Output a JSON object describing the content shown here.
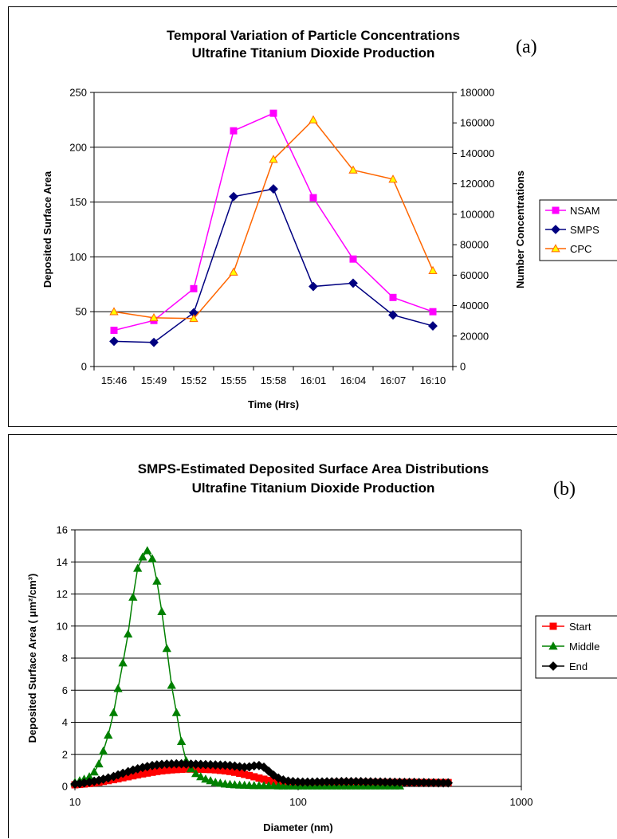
{
  "chart_data": [
    {
      "panel_label": "(a)",
      "type": "line",
      "title": "Temporal Variation of Particle Concentrations",
      "subtitle": "Ultrafine Titanium Dioxide Production",
      "xlabel": "Time (Hrs)",
      "ylabel": "Deposited Surface Area",
      "y2label": "Number Concentrations",
      "categories": [
        "15:46",
        "15:49",
        "15:52",
        "15:55",
        "15:58",
        "16:01",
        "16:04",
        "16:07",
        "16:10"
      ],
      "ylim": [
        0,
        250
      ],
      "y2lim": [
        0,
        180000
      ],
      "yticks": [
        "0",
        "50",
        "100",
        "150",
        "200",
        "250"
      ],
      "y2ticks": [
        "0",
        "20000",
        "40000",
        "60000",
        "80000",
        "100000",
        "120000",
        "140000",
        "160000",
        "180000"
      ],
      "grid": true,
      "legend_position": "right",
      "series": [
        {
          "name": "NSAM",
          "axis": "left",
          "color": "#ff00ff",
          "marker": "square",
          "values": [
            33,
            42,
            71,
            215,
            231,
            154,
            98,
            63,
            50
          ]
        },
        {
          "name": "SMPS",
          "axis": "left",
          "color": "#000080",
          "marker": "diamond",
          "values": [
            23,
            22,
            49,
            155,
            162,
            73,
            76,
            47,
            37
          ]
        },
        {
          "name": "CPC",
          "axis": "right",
          "color": "#ff6600",
          "marker_fill": "#ffff00",
          "marker": "triangle",
          "values": [
            36000,
            32000,
            31500,
            62000,
            136000,
            162000,
            129000,
            123000,
            63000
          ]
        }
      ]
    },
    {
      "panel_label": "(b)",
      "type": "line",
      "title": "SMPS-Estimated Deposited Surface Area Distributions",
      "subtitle": "Ultrafine Titanium Dioxide Production",
      "xlabel": "Diameter (nm)",
      "ylabel": "Deposited Surface Area ( μm²/cm³)",
      "xscale": "log",
      "xlim": [
        10,
        1000
      ],
      "xticks": [
        "10",
        "100",
        "1000"
      ],
      "ylim": [
        0,
        16
      ],
      "yticks": [
        "0",
        "2",
        "4",
        "6",
        "8",
        "10",
        "12",
        "14",
        "16"
      ],
      "grid": true,
      "legend_position": "right",
      "series": [
        {
          "name": "Start",
          "color": "#ff0000",
          "marker": "square",
          "x": [
            10,
            10.5,
            11,
            11.6,
            12.2,
            12.8,
            13.4,
            14.1,
            14.9,
            15.6,
            16.4,
            17.3,
            18.2,
            19.1,
            20.1,
            21.1,
            22.2,
            23.3,
            24.5,
            25.8,
            27.1,
            28.5,
            30,
            31.5,
            33.1,
            34.8,
            36.6,
            38.5,
            40.5,
            42.6,
            44.8,
            47.1,
            49.5,
            52,
            54.7,
            57.5,
            60.4,
            63.5,
            66.8,
            70.2,
            73.8,
            77.6,
            81.6,
            85.8,
            90.2,
            94.8,
            99.7,
            104.8,
            110.2,
            115.8,
            121.8,
            128,
            134.6,
            141.5,
            148.7,
            156.4,
            164.4,
            172.8,
            181.7,
            191,
            200.8,
            211.1,
            221.9,
            233.3,
            245.3,
            257.9,
            271.1,
            285,
            299.6,
            315,
            331.2,
            348.1,
            366,
            384.8,
            404.5,
            425.3,
            447.1,
            470
          ],
          "values": [
            0.1,
            0.12,
            0.15,
            0.18,
            0.22,
            0.26,
            0.31,
            0.36,
            0.42,
            0.48,
            0.54,
            0.6,
            0.66,
            0.72,
            0.78,
            0.83,
            0.88,
            0.93,
            0.97,
            1.0,
            1.03,
            1.05,
            1.07,
            1.08,
            1.08,
            1.08,
            1.07,
            1.06,
            1.05,
            1.03,
            1.0,
            0.97,
            0.93,
            0.88,
            0.82,
            0.75,
            0.68,
            0.6,
            0.52,
            0.45,
            0.38,
            0.32,
            0.27,
            0.23,
            0.2,
            0.18,
            0.17,
            0.17,
            0.18,
            0.19,
            0.2,
            0.21,
            0.22,
            0.23,
            0.24,
            0.24,
            0.25,
            0.25,
            0.25,
            0.25,
            0.25,
            0.25,
            0.25,
            0.25,
            0.25,
            0.25,
            0.25,
            0.25,
            0.25,
            0.25,
            0.25,
            0.24,
            0.24,
            0.24,
            0.24,
            0.24,
            0.24,
            0.24
          ]
        },
        {
          "name": "Middle",
          "color": "#008000",
          "marker": "triangle",
          "x": [
            10,
            10.5,
            11,
            11.6,
            12.2,
            12.8,
            13.4,
            14.1,
            14.9,
            15.6,
            16.4,
            17.3,
            18.2,
            19.1,
            20.1,
            21.1,
            22.2,
            23.3,
            24.5,
            25.8,
            27.1,
            28.5,
            30,
            31.5,
            33.1,
            34.8,
            36.6,
            38.5,
            40.5,
            42.6,
            44.8,
            47.1,
            49.5,
            52,
            54.7,
            57.5,
            60.4,
            63.5,
            66.8,
            70.2,
            73.8,
            77.6,
            81.6,
            85.8,
            90.2,
            94.8,
            99.7,
            104.8,
            110.2,
            115.8,
            121.8,
            128,
            134.6,
            141.5,
            148.7,
            156.4,
            164.4,
            172.8,
            181.7,
            191,
            200.8,
            211.1,
            221.9,
            233.3,
            245.3,
            257.9,
            271.1,
            285
          ],
          "values": [
            0.25,
            0.35,
            0.45,
            0.6,
            0.9,
            1.4,
            2.2,
            3.2,
            4.6,
            6.1,
            7.7,
            9.5,
            11.8,
            13.6,
            14.3,
            14.7,
            14.2,
            12.8,
            10.9,
            8.6,
            6.3,
            4.6,
            2.8,
            1.6,
            1.1,
            0.8,
            0.6,
            0.45,
            0.35,
            0.25,
            0.2,
            0.15,
            0.12,
            0.1,
            0.08,
            0.07,
            0.06,
            0.05,
            0.05,
            0.04,
            0.04,
            0.04,
            0.03,
            0.03,
            0.03,
            0.03,
            0.03,
            0.03,
            0.03,
            0.03,
            0.03,
            0.03,
            0.03,
            0.03,
            0.03,
            0.03,
            0.03,
            0.03,
            0.03,
            0.03,
            0.03,
            0.03,
            0.03,
            0.03,
            0.03,
            0.03,
            0.03,
            0.03
          ]
        },
        {
          "name": "End",
          "color": "#000000",
          "marker": "diamond",
          "x": [
            10,
            10.5,
            11,
            11.6,
            12.2,
            12.8,
            13.4,
            14.1,
            14.9,
            15.6,
            16.4,
            17.3,
            18.2,
            19.1,
            20.1,
            21.1,
            22.2,
            23.3,
            24.5,
            25.8,
            27.1,
            28.5,
            30,
            31.5,
            33.1,
            34.8,
            36.6,
            38.5,
            40.5,
            42.6,
            44.8,
            47.1,
            49.5,
            52,
            54.7,
            57.5,
            60.4,
            63.5,
            66.8,
            70.2,
            73.8,
            77.6,
            81.6,
            85.8,
            90.2,
            94.8,
            99.7,
            104.8,
            110.2,
            115.8,
            121.8,
            128,
            134.6,
            141.5,
            148.7,
            156.4,
            164.4,
            172.8,
            181.7,
            191,
            200.8,
            211.1,
            221.9,
            233.3,
            245.3,
            257.9,
            271.1,
            285,
            299.6,
            315,
            331.2,
            348.1,
            366,
            384.8,
            404.5,
            425.3,
            447.1,
            470
          ],
          "values": [
            0.15,
            0.18,
            0.22,
            0.27,
            0.32,
            0.38,
            0.45,
            0.53,
            0.62,
            0.72,
            0.82,
            0.92,
            1.02,
            1.1,
            1.18,
            1.24,
            1.3,
            1.34,
            1.37,
            1.39,
            1.4,
            1.41,
            1.41,
            1.4,
            1.39,
            1.38,
            1.37,
            1.36,
            1.35,
            1.34,
            1.33,
            1.32,
            1.3,
            1.27,
            1.23,
            1.2,
            1.22,
            1.28,
            1.3,
            1.2,
            0.95,
            0.7,
            0.52,
            0.4,
            0.33,
            0.3,
            0.28,
            0.27,
            0.27,
            0.27,
            0.28,
            0.28,
            0.29,
            0.29,
            0.29,
            0.3,
            0.3,
            0.3,
            0.3,
            0.3,
            0.29,
            0.29,
            0.28,
            0.28,
            0.27,
            0.27,
            0.26,
            0.26,
            0.25,
            0.25,
            0.25,
            0.24,
            0.24,
            0.23,
            0.23,
            0.22,
            0.22,
            0.22
          ]
        }
      ]
    }
  ]
}
